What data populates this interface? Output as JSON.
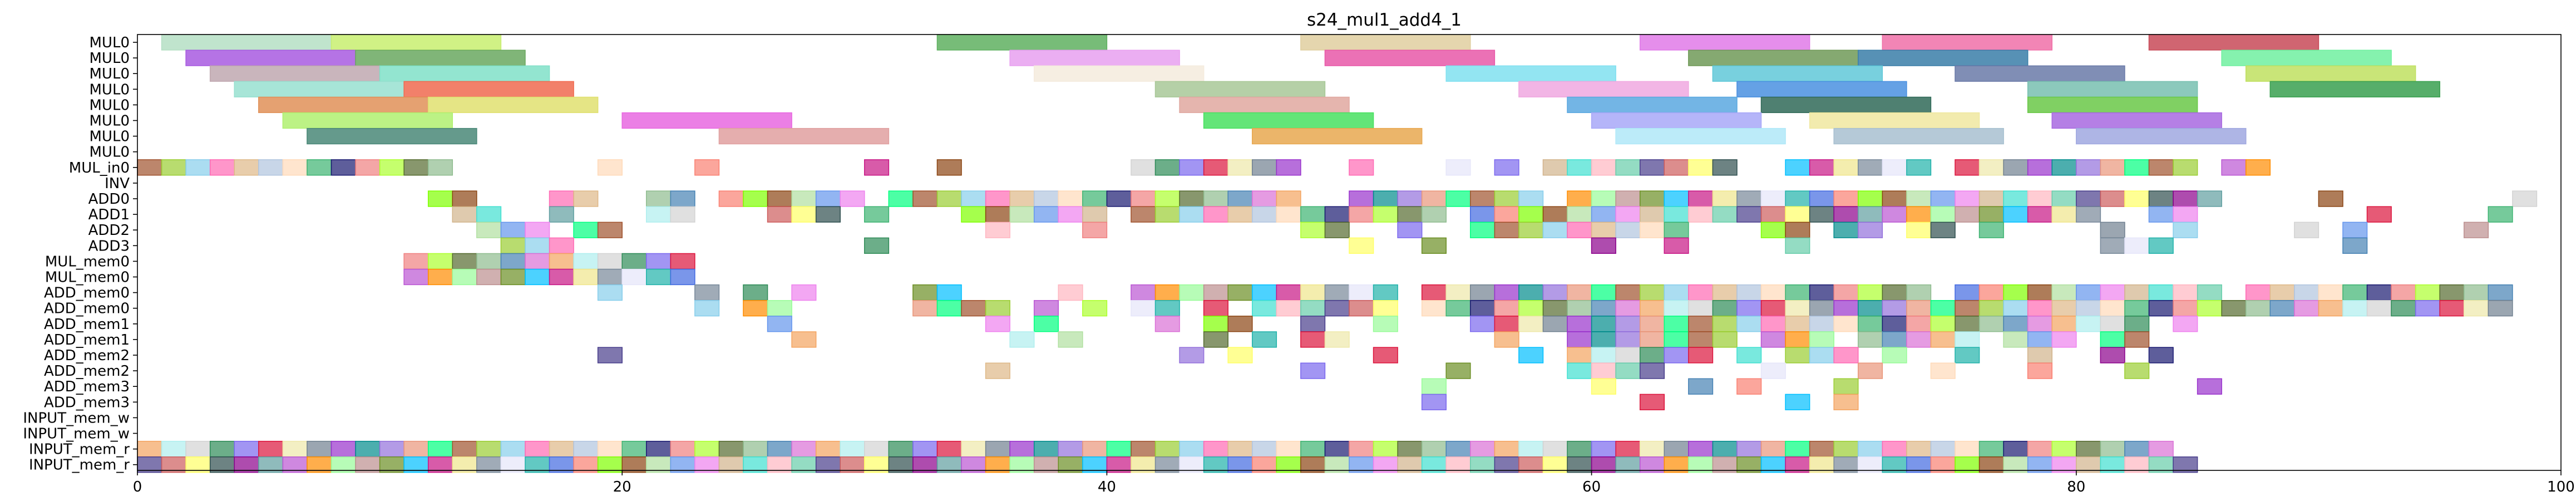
{
  "chart_data": {
    "type": "gantt",
    "title": "s24_mul1_add4_1",
    "xlim": [
      0,
      100
    ],
    "x_ticks": [
      0,
      20,
      40,
      60,
      80,
      100
    ],
    "rows": [
      "MUL0",
      "MUL0",
      "MUL0",
      "MUL0",
      "MUL0",
      "MUL0",
      "MUL0",
      "MUL0",
      "MUL_in0",
      "INV",
      "ADD0",
      "ADD1",
      "ADD2",
      "ADD3",
      "MUL_mem0",
      "MUL_mem0",
      "ADD_mem0",
      "ADD_mem0",
      "ADD_mem1",
      "ADD_mem1",
      "ADD_mem2",
      "ADD_mem2",
      "ADD_mem3",
      "ADD_mem3",
      "INPUT_mem_w",
      "INPUT_mem_w",
      "INPUT_mem_r",
      "INPUT_mem_r"
    ],
    "palette": [
      "#8fbc8f",
      "#b0e0a0",
      "#9acd32",
      "#6b8e23",
      "#2e8b57",
      "#66cdaa",
      "#3cb371",
      "#20b2aa",
      "#008b8b",
      "#5f9ea0",
      "#4682b4",
      "#6495ed",
      "#87ceeb",
      "#00bfff",
      "#7b68ee",
      "#483d8b",
      "#191970",
      "#4169e1",
      "#9370db",
      "#ba55d3",
      "#da70d6",
      "#ee82ee",
      "#ff69b4",
      "#c71585",
      "#dc143c",
      "#cd5c5c",
      "#f08080",
      "#fa8072",
      "#e9967a",
      "#ff8c00",
      "#f4a460",
      "#d2b48c",
      "#deb887",
      "#f0e68c",
      "#eee8aa",
      "#ffff66",
      "#adff2f",
      "#7fff00",
      "#00ff7f",
      "#98fb98",
      "#afeeee",
      "#40e0d0",
      "#b0c4de",
      "#778899",
      "#708090",
      "#2f4f4f",
      "#556b2f",
      "#8b4513",
      "#a0522d",
      "#bc8f8f",
      "#d3d3d3",
      "#ffb6c1",
      "#ffdab9",
      "#e6e6fa",
      "#9932cc",
      "#8b008b"
    ],
    "big_bars": [
      {
        "row": 0,
        "start": 1,
        "end": 8,
        "color": "#b5dfc4"
      },
      {
        "row": 0,
        "start": 8,
        "end": 15,
        "color": "#c8ee70"
      },
      {
        "row": 0,
        "start": 33,
        "end": 40,
        "color": "#5fb060"
      },
      {
        "row": 0,
        "start": 48,
        "end": 55,
        "color": "#e0cfa0"
      },
      {
        "row": 0,
        "start": 62,
        "end": 69,
        "color": "#e07ae8"
      },
      {
        "row": 0,
        "start": 72,
        "end": 79,
        "color": "#f070a8"
      },
      {
        "row": 0,
        "start": 83,
        "end": 90,
        "color": "#c84a58"
      },
      {
        "row": 1,
        "start": 2,
        "end": 9,
        "color": "#a85ae0"
      },
      {
        "row": 1,
        "start": 9,
        "end": 16,
        "color": "#6aa860"
      },
      {
        "row": 1,
        "start": 36,
        "end": 43,
        "color": "#e8a0f0"
      },
      {
        "row": 1,
        "start": 49,
        "end": 56,
        "color": "#e858a8"
      },
      {
        "row": 1,
        "start": 64,
        "end": 71,
        "color": "#709a58"
      },
      {
        "row": 1,
        "start": 71,
        "end": 78,
        "color": "#3a7ea8"
      },
      {
        "row": 1,
        "start": 86,
        "end": 93,
        "color": "#70f0a0"
      },
      {
        "row": 2,
        "start": 3,
        "end": 10,
        "color": "#c0a8b0"
      },
      {
        "row": 2,
        "start": 10,
        "end": 17,
        "color": "#80e0c8"
      },
      {
        "row": 2,
        "start": 37,
        "end": 44,
        "color": "#f5ebdd"
      },
      {
        "row": 2,
        "start": 54,
        "end": 61,
        "color": "#80e0f0"
      },
      {
        "row": 2,
        "start": 65,
        "end": 72,
        "color": "#60c8d8"
      },
      {
        "row": 2,
        "start": 75,
        "end": 82,
        "color": "#6a7aa8"
      },
      {
        "row": 2,
        "start": 87,
        "end": 94,
        "color": "#c0e060"
      },
      {
        "row": 3,
        "start": 4,
        "end": 11,
        "color": "#98e0d0"
      },
      {
        "row": 3,
        "start": 11,
        "end": 18,
        "color": "#f06a50"
      },
      {
        "row": 3,
        "start": 42,
        "end": 49,
        "color": "#a8c898"
      },
      {
        "row": 3,
        "start": 57,
        "end": 64,
        "color": "#f0a8e0"
      },
      {
        "row": 3,
        "start": 66,
        "end": 73,
        "color": "#4a90e0"
      },
      {
        "row": 3,
        "start": 78,
        "end": 85,
        "color": "#78c0b0"
      },
      {
        "row": 3,
        "start": 88,
        "end": 95,
        "color": "#3aa050"
      },
      {
        "row": 4,
        "start": 5,
        "end": 12,
        "color": "#e09058"
      },
      {
        "row": 4,
        "start": 12,
        "end": 19,
        "color": "#e0e070"
      },
      {
        "row": 4,
        "start": 43,
        "end": 50,
        "color": "#e0a8a0"
      },
      {
        "row": 4,
        "start": 59,
        "end": 66,
        "color": "#5aa8e0"
      },
      {
        "row": 4,
        "start": 67,
        "end": 74,
        "color": "#306a58"
      },
      {
        "row": 4,
        "start": 78,
        "end": 85,
        "color": "#6ac848"
      },
      {
        "row": 5,
        "start": 6,
        "end": 13,
        "color": "#b0f070"
      },
      {
        "row": 5,
        "start": 20,
        "end": 27,
        "color": "#e868e0"
      },
      {
        "row": 5,
        "start": 44,
        "end": 51,
        "color": "#48e060"
      },
      {
        "row": 5,
        "start": 60,
        "end": 67,
        "color": "#a8a8f8"
      },
      {
        "row": 5,
        "start": 69,
        "end": 76,
        "color": "#f0e8a0"
      },
      {
        "row": 5,
        "start": 79,
        "end": 86,
        "color": "#a868e0"
      },
      {
        "row": 6,
        "start": 7,
        "end": 14,
        "color": "#4a8878"
      },
      {
        "row": 6,
        "start": 24,
        "end": 31,
        "color": "#e0a0a0"
      },
      {
        "row": 6,
        "start": 46,
        "end": 53,
        "color": "#e8a850"
      },
      {
        "row": 6,
        "start": 61,
        "end": 68,
        "color": "#b0e8f8"
      },
      {
        "row": 6,
        "start": 70,
        "end": 77,
        "color": "#a8c0d0"
      },
      {
        "row": 6,
        "start": 80,
        "end": 87,
        "color": "#a0a8e0"
      }
    ],
    "small_spans": [
      {
        "row": 8,
        "from": 0,
        "to": 12
      },
      {
        "row": 8,
        "from": 12,
        "to": 13
      },
      {
        "row": 8,
        "from": 19,
        "to": 20
      },
      {
        "row": 8,
        "from": 23,
        "to": 24
      },
      {
        "row": 8,
        "from": 30,
        "to": 31
      },
      {
        "row": 8,
        "from": 33,
        "to": 34
      },
      {
        "row": 8,
        "from": 41,
        "to": 48
      },
      {
        "row": 8,
        "from": 50,
        "to": 51
      },
      {
        "row": 8,
        "from": 54,
        "to": 55
      },
      {
        "row": 8,
        "from": 56,
        "to": 57
      },
      {
        "row": 8,
        "from": 58,
        "to": 66
      },
      {
        "row": 8,
        "from": 68,
        "to": 74
      },
      {
        "row": 8,
        "from": 75,
        "to": 85
      },
      {
        "row": 8,
        "from": 86,
        "to": 88
      },
      {
        "row": 10,
        "from": 12,
        "to": 14
      },
      {
        "row": 10,
        "from": 17,
        "to": 19
      },
      {
        "row": 10,
        "from": 21,
        "to": 23
      },
      {
        "row": 10,
        "from": 24,
        "to": 30
      },
      {
        "row": 10,
        "from": 31,
        "to": 48
      },
      {
        "row": 10,
        "from": 50,
        "to": 58
      },
      {
        "row": 10,
        "from": 59,
        "to": 86
      },
      {
        "row": 10,
        "from": 90,
        "to": 91
      },
      {
        "row": 10,
        "from": 98,
        "to": 99
      },
      {
        "row": 11,
        "from": 13,
        "to": 15
      },
      {
        "row": 11,
        "from": 17,
        "to": 18
      },
      {
        "row": 11,
        "from": 21,
        "to": 23
      },
      {
        "row": 11,
        "from": 26,
        "to": 29
      },
      {
        "row": 11,
        "from": 30,
        "to": 31
      },
      {
        "row": 11,
        "from": 34,
        "to": 40
      },
      {
        "row": 11,
        "from": 41,
        "to": 54
      },
      {
        "row": 11,
        "from": 55,
        "to": 81
      },
      {
        "row": 11,
        "from": 83,
        "to": 85
      },
      {
        "row": 11,
        "from": 92,
        "to": 93
      },
      {
        "row": 11,
        "from": 97,
        "to": 98
      },
      {
        "row": 12,
        "from": 14,
        "to": 17
      },
      {
        "row": 12,
        "from": 18,
        "to": 20
      },
      {
        "row": 12,
        "from": 35,
        "to": 36
      },
      {
        "row": 12,
        "from": 39,
        "to": 40
      },
      {
        "row": 12,
        "from": 48,
        "to": 50
      },
      {
        "row": 12,
        "from": 52,
        "to": 53
      },
      {
        "row": 12,
        "from": 55,
        "to": 64
      },
      {
        "row": 12,
        "from": 67,
        "to": 69
      },
      {
        "row": 12,
        "from": 70,
        "to": 72
      },
      {
        "row": 12,
        "from": 73,
        "to": 75
      },
      {
        "row": 12,
        "from": 76,
        "to": 77
      },
      {
        "row": 12,
        "from": 81,
        "to": 82
      },
      {
        "row": 12,
        "from": 84,
        "to": 85
      },
      {
        "row": 12,
        "from": 89,
        "to": 90
      },
      {
        "row": 12,
        "from": 91,
        "to": 92
      },
      {
        "row": 12,
        "from": 96,
        "to": 97
      },
      {
        "row": 13,
        "from": 15,
        "to": 18
      },
      {
        "row": 13,
        "from": 30,
        "to": 31
      },
      {
        "row": 13,
        "from": 50,
        "to": 51
      },
      {
        "row": 13,
        "from": 53,
        "to": 54
      },
      {
        "row": 13,
        "from": 60,
        "to": 61
      },
      {
        "row": 13,
        "from": 63,
        "to": 64
      },
      {
        "row": 13,
        "from": 68,
        "to": 69
      },
      {
        "row": 13,
        "from": 81,
        "to": 84
      },
      {
        "row": 13,
        "from": 91,
        "to": 92
      },
      {
        "row": 14,
        "from": 11,
        "to": 23
      },
      {
        "row": 15,
        "from": 11,
        "to": 23
      },
      {
        "row": 16,
        "from": 19,
        "to": 20
      },
      {
        "row": 16,
        "from": 23,
        "to": 24
      },
      {
        "row": 16,
        "from": 25,
        "to": 26
      },
      {
        "row": 16,
        "from": 27,
        "to": 28
      },
      {
        "row": 16,
        "from": 32,
        "to": 34
      },
      {
        "row": 16,
        "from": 38,
        "to": 39
      },
      {
        "row": 16,
        "from": 41,
        "to": 52
      },
      {
        "row": 16,
        "from": 53,
        "to": 74
      },
      {
        "row": 16,
        "from": 75,
        "to": 86
      },
      {
        "row": 16,
        "from": 87,
        "to": 98
      },
      {
        "row": 17,
        "from": 23,
        "to": 24
      },
      {
        "row": 17,
        "from": 25,
        "to": 27
      },
      {
        "row": 17,
        "from": 32,
        "to": 36
      },
      {
        "row": 17,
        "from": 37,
        "to": 38
      },
      {
        "row": 17,
        "from": 39,
        "to": 40
      },
      {
        "row": 17,
        "from": 41,
        "to": 43
      },
      {
        "row": 17,
        "from": 44,
        "to": 45
      },
      {
        "row": 17,
        "from": 46,
        "to": 52
      },
      {
        "row": 17,
        "from": 53,
        "to": 98
      },
      {
        "row": 18,
        "from": 26,
        "to": 27
      },
      {
        "row": 18,
        "from": 35,
        "to": 36
      },
      {
        "row": 18,
        "from": 37,
        "to": 38
      },
      {
        "row": 18,
        "from": 42,
        "to": 43
      },
      {
        "row": 18,
        "from": 44,
        "to": 46
      },
      {
        "row": 18,
        "from": 48,
        "to": 49
      },
      {
        "row": 18,
        "from": 51,
        "to": 52
      },
      {
        "row": 18,
        "from": 55,
        "to": 83
      },
      {
        "row": 18,
        "from": 84,
        "to": 85
      },
      {
        "row": 19,
        "from": 27,
        "to": 28
      },
      {
        "row": 19,
        "from": 36,
        "to": 37
      },
      {
        "row": 19,
        "from": 38,
        "to": 39
      },
      {
        "row": 19,
        "from": 44,
        "to": 45
      },
      {
        "row": 19,
        "from": 46,
        "to": 47
      },
      {
        "row": 19,
        "from": 48,
        "to": 50
      },
      {
        "row": 19,
        "from": 56,
        "to": 57
      },
      {
        "row": 19,
        "from": 59,
        "to": 66
      },
      {
        "row": 19,
        "from": 67,
        "to": 70
      },
      {
        "row": 19,
        "from": 71,
        "to": 76
      },
      {
        "row": 19,
        "from": 77,
        "to": 80
      },
      {
        "row": 19,
        "from": 81,
        "to": 83
      },
      {
        "row": 20,
        "from": 19,
        "to": 20
      },
      {
        "row": 20,
        "from": 43,
        "to": 44
      },
      {
        "row": 20,
        "from": 45,
        "to": 46
      },
      {
        "row": 20,
        "from": 51,
        "to": 52
      },
      {
        "row": 20,
        "from": 57,
        "to": 58
      },
      {
        "row": 20,
        "from": 59,
        "to": 65
      },
      {
        "row": 20,
        "from": 66,
        "to": 67
      },
      {
        "row": 20,
        "from": 68,
        "to": 71
      },
      {
        "row": 20,
        "from": 72,
        "to": 73
      },
      {
        "row": 20,
        "from": 75,
        "to": 76
      },
      {
        "row": 20,
        "from": 78,
        "to": 79
      },
      {
        "row": 20,
        "from": 81,
        "to": 82
      },
      {
        "row": 20,
        "from": 83,
        "to": 84
      },
      {
        "row": 21,
        "from": 35,
        "to": 36
      },
      {
        "row": 21,
        "from": 48,
        "to": 49
      },
      {
        "row": 21,
        "from": 54,
        "to": 55
      },
      {
        "row": 21,
        "from": 59,
        "to": 63
      },
      {
        "row": 21,
        "from": 67,
        "to": 68
      },
      {
        "row": 21,
        "from": 71,
        "to": 72
      },
      {
        "row": 21,
        "from": 74,
        "to": 75
      },
      {
        "row": 21,
        "from": 78,
        "to": 79
      },
      {
        "row": 21,
        "from": 82,
        "to": 83
      },
      {
        "row": 22,
        "from": 53,
        "to": 54
      },
      {
        "row": 22,
        "from": 60,
        "to": 61
      },
      {
        "row": 22,
        "from": 64,
        "to": 65
      },
      {
        "row": 22,
        "from": 66,
        "to": 67
      },
      {
        "row": 22,
        "from": 70,
        "to": 71
      },
      {
        "row": 22,
        "from": 85,
        "to": 86
      },
      {
        "row": 23,
        "from": 53,
        "to": 54
      },
      {
        "row": 23,
        "from": 62,
        "to": 63
      },
      {
        "row": 23,
        "from": 68,
        "to": 69
      },
      {
        "row": 23,
        "from": 70,
        "to": 71
      },
      {
        "row": 26,
        "from": 0,
        "to": 84
      },
      {
        "row": 27,
        "from": 0,
        "to": 85
      }
    ]
  }
}
